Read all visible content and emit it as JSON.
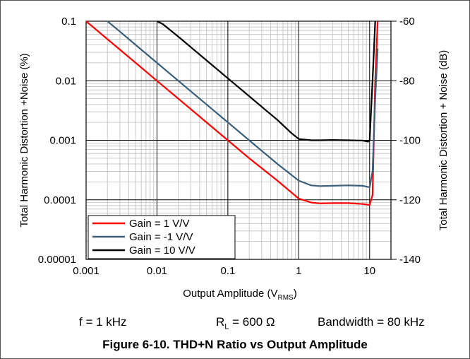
{
  "chart_data": {
    "type": "line",
    "title": "",
    "xlabel": "Output Amplitude",
    "xlabel_sub": "RMS",
    "xlabel_prefix": "(V",
    "xlabel_suffix": ")",
    "ylabel": "Total Harmonic Distortion +Noise (%)",
    "ylabel_right": "Total Harmonic Distortion + Noise (dB)",
    "xscale": "log",
    "yscale": "log",
    "xlim": [
      0.001,
      20
    ],
    "ylim": [
      1e-05,
      0.1
    ],
    "xticks": [
      "0.001",
      "0.01",
      "0.1",
      "1",
      "10"
    ],
    "yticks": [
      "0.1",
      "0.01",
      "0.001",
      "0.0001",
      "0.00001"
    ],
    "yticks_right": [
      "-60",
      "-80",
      "-100",
      "-120",
      "-140"
    ],
    "grid": true,
    "legend_position": "bottom-left",
    "series": [
      {
        "name": "Gain = 1 V/V",
        "color": "#ff0000",
        "x": [
          0.001,
          0.002,
          0.005,
          0.01,
          0.02,
          0.05,
          0.1,
          0.2,
          0.5,
          1,
          1.5,
          2,
          3,
          5,
          8,
          10,
          11,
          12,
          13
        ],
        "y": [
          0.1,
          0.05,
          0.02,
          0.01,
          0.005,
          0.002,
          0.001,
          0.0005,
          0.00021,
          0.000105,
          9e-05,
          8.7e-05,
          8.8e-05,
          8.8e-05,
          8.5e-05,
          8.2e-05,
          0.00012,
          0.01,
          0.1
        ]
      },
      {
        "name": "Gain = -1 V/V",
        "color": "#3a5f7a",
        "x": [
          0.002,
          0.003,
          0.005,
          0.01,
          0.02,
          0.05,
          0.1,
          0.2,
          0.5,
          1,
          1.5,
          2,
          3,
          5,
          8,
          10,
          11,
          12,
          13
        ],
        "y": [
          0.1,
          0.067,
          0.04,
          0.02,
          0.01,
          0.004,
          0.002,
          0.001,
          0.0004,
          0.00021,
          0.000175,
          0.00017,
          0.000172,
          0.000175,
          0.000172,
          0.000162,
          0.0003,
          0.005,
          0.035
        ]
      },
      {
        "name": "Gain = 10 V/V",
        "color": "#000000",
        "x": [
          0.01,
          0.012,
          0.02,
          0.05,
          0.1,
          0.2,
          0.5,
          0.8,
          1,
          1.5,
          2,
          3,
          5,
          8,
          9.5,
          10,
          11,
          12
        ],
        "y": [
          0.1,
          0.09,
          0.055,
          0.022,
          0.011,
          0.0055,
          0.0022,
          0.0013,
          0.00105,
          0.001,
          0.001,
          0.00101,
          0.001,
          0.00099,
          0.00095,
          0.001,
          0.01,
          0.1
        ]
      }
    ]
  },
  "conditions": {
    "freq": "f = 1 kHz",
    "load_prefix": "R",
    "load_sub": "L",
    "load_suffix": " = 600 Ω",
    "bandwidth": "Bandwidth = 80 kHz"
  },
  "caption": "Figure 6-10. THD+N Ratio vs Output Amplitude"
}
